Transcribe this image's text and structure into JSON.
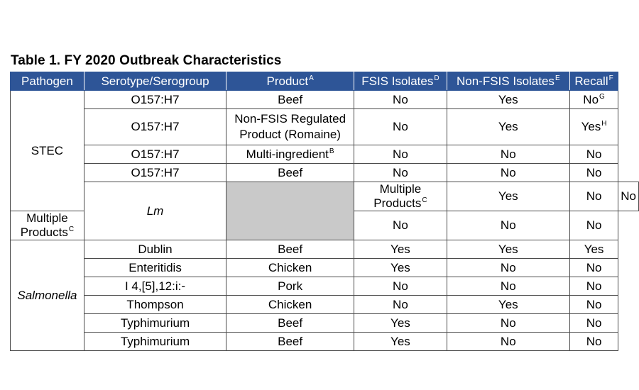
{
  "caption": "Table 1.  FY 2020 Outbreak Characteristics",
  "headers": {
    "pathogen": "Pathogen",
    "serotype": "Serotype/Serogroup",
    "product": "Product",
    "product_note": "A",
    "fsis": "FSIS Isolates",
    "fsis_note": "D",
    "nonfsis": "Non-FSIS Isolates",
    "nonfsis_note": "E",
    "recall": "Recall",
    "recall_note": "F"
  },
  "groups": {
    "stec": "STEC",
    "lm": "Lm",
    "salmonella": "Salmonella"
  },
  "rows": [
    {
      "serotype": "O157:H7",
      "product": "Beef",
      "product_note": "",
      "fsis": "No",
      "nonfsis": "Yes",
      "recall": "No",
      "recall_note": "G"
    },
    {
      "serotype": "O157:H7",
      "product_line1": "Non-FSIS Regulated",
      "product_line2": "Product (Romaine)",
      "fsis": "No",
      "nonfsis": "Yes",
      "recall": "Yes",
      "recall_note": "H"
    },
    {
      "serotype": "O157:H7",
      "product": "Multi-ingredient",
      "product_note": "B",
      "fsis": "No",
      "nonfsis": "No",
      "recall": "No"
    },
    {
      "serotype": "O157:H7",
      "product": "Beef",
      "fsis": "No",
      "nonfsis": "No",
      "recall": "No"
    },
    {
      "serotype": "",
      "product": "Multiple Products",
      "product_note": "C",
      "fsis": "Yes",
      "nonfsis": "No",
      "recall": "No"
    },
    {
      "serotype": "",
      "product": "Multiple Products",
      "product_note": "C",
      "fsis": "No",
      "nonfsis": "No",
      "recall": "No"
    },
    {
      "serotype": "Dublin",
      "product": "Beef",
      "fsis": "Yes",
      "nonfsis": "Yes",
      "recall": "Yes"
    },
    {
      "serotype": "Enteritidis",
      "product": "Chicken",
      "fsis": "Yes",
      "nonfsis": "No",
      "recall": "No"
    },
    {
      "serotype": "I 4,[5],12:i:-",
      "product": "Pork",
      "fsis": "No",
      "nonfsis": "No",
      "recall": "No"
    },
    {
      "serotype": "Thompson",
      "product": "Chicken",
      "fsis": "No",
      "nonfsis": "Yes",
      "recall": "No"
    },
    {
      "serotype": "Typhimurium",
      "product": "Beef",
      "fsis": "Yes",
      "nonfsis": "No",
      "recall": "No"
    },
    {
      "serotype": "Typhimurium",
      "product": "Beef",
      "fsis": "Yes",
      "nonfsis": "No",
      "recall": "No"
    }
  ]
}
